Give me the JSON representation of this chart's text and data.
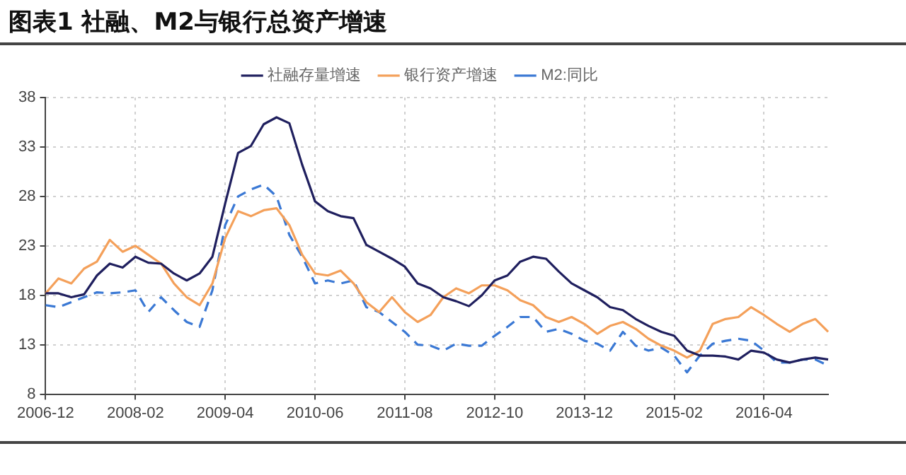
{
  "chart_data": {
    "type": "line",
    "title": "图表1  社融、M2与银行总资产增速",
    "categories": [
      "2006-12",
      null,
      null,
      null,
      null,
      null,
      null,
      "2008-02",
      null,
      null,
      null,
      null,
      null,
      null,
      "2009-04",
      null,
      null,
      null,
      null,
      null,
      null,
      "2010-06",
      null,
      null,
      null,
      null,
      null,
      null,
      "2011-08",
      null,
      null,
      null,
      null,
      null,
      null,
      "2012-10",
      null,
      null,
      null,
      null,
      null,
      null,
      "2013-12",
      null,
      null,
      null,
      null,
      null,
      null,
      "2015-02",
      null,
      null,
      null,
      null,
      null,
      null,
      "2016-04",
      null,
      null,
      null,
      null,
      null
    ],
    "series": [
      {
        "name": "社融存量增速",
        "color": "#1f1f5e",
        "line_style": "solid",
        "values": [
          18.2,
          18.2,
          17.8,
          18.1,
          20.0,
          21.2,
          20.8,
          21.9,
          21.3,
          21.2,
          20.2,
          19.5,
          20.2,
          21.9,
          27.3,
          32.4,
          33.1,
          35.3,
          36.0,
          35.4,
          31.2,
          27.5,
          26.5,
          26.0,
          25.8,
          23.1,
          22.4,
          21.7,
          20.9,
          19.2,
          18.7,
          17.8,
          17.4,
          16.9,
          18.0,
          19.5,
          20.0,
          21.4,
          21.9,
          21.7,
          20.4,
          19.2,
          18.5,
          17.8,
          16.8,
          16.5,
          15.6,
          14.9,
          14.3,
          13.9,
          12.4,
          11.9,
          11.9,
          11.8,
          11.5,
          12.4,
          12.2,
          11.5,
          11.2,
          11.5,
          11.7,
          11.5
        ]
      },
      {
        "name": "银行资产增速",
        "color": "#f4a05a",
        "line_style": "solid",
        "values": [
          18.2,
          19.7,
          19.2,
          20.7,
          21.4,
          23.6,
          22.4,
          23.0,
          22.1,
          21.2,
          19.2,
          17.8,
          17.0,
          19.2,
          23.8,
          26.5,
          26.0,
          26.6,
          26.8,
          25.1,
          22.1,
          20.2,
          20.0,
          20.5,
          19.2,
          17.3,
          16.3,
          17.8,
          16.3,
          15.3,
          16.0,
          17.8,
          18.7,
          18.2,
          19.0,
          19.0,
          18.5,
          17.5,
          17.0,
          15.8,
          15.3,
          15.8,
          15.1,
          14.1,
          14.9,
          15.3,
          14.6,
          13.6,
          12.9,
          12.4,
          11.7,
          12.4,
          15.1,
          15.6,
          15.8,
          16.8,
          16.0,
          15.1,
          14.3,
          15.1,
          15.6,
          14.3
        ]
      },
      {
        "name": "M2:同比",
        "color": "#3a78d4",
        "line_style": "dashed",
        "values": [
          17.0,
          16.8,
          17.3,
          17.8,
          18.3,
          18.2,
          18.3,
          18.5,
          16.3,
          17.8,
          16.5,
          15.3,
          14.8,
          18.5,
          25.1,
          28.0,
          28.7,
          29.2,
          28.0,
          24.1,
          21.9,
          19.2,
          19.5,
          19.2,
          19.5,
          16.8,
          16.3,
          15.3,
          14.3,
          13.0,
          12.9,
          12.4,
          13.1,
          12.9,
          12.9,
          13.9,
          14.8,
          15.8,
          15.8,
          14.3,
          14.6,
          14.1,
          13.4,
          13.1,
          12.4,
          14.3,
          12.9,
          12.4,
          12.7,
          11.9,
          10.2,
          11.9,
          13.1,
          13.4,
          13.6,
          13.4,
          12.4,
          11.2,
          11.2,
          11.5,
          11.5,
          10.9
        ]
      }
    ],
    "ylim": [
      8,
      38
    ],
    "yticks": [
      8,
      13,
      18,
      23,
      28,
      33,
      38
    ],
    "grid": true,
    "legend": "top",
    "marker": "none"
  }
}
